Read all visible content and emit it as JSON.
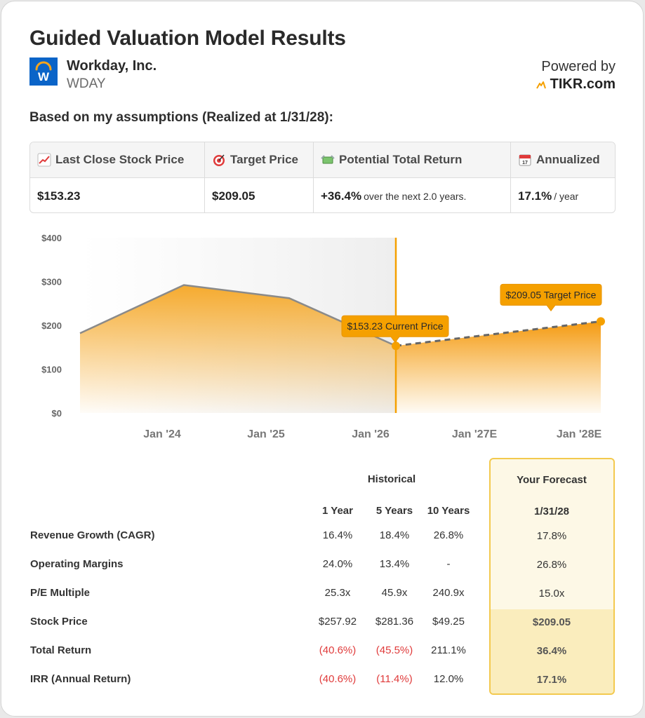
{
  "header": {
    "title": "Guided Valuation Model Results",
    "company_name": "Workday, Inc.",
    "ticker": "WDAY",
    "logo_letter": "W",
    "powered_by": "Powered by",
    "brand": "TIKR.com"
  },
  "assumptions_label": "Based on my assumptions (Realized at 1/31/28):",
  "summary": {
    "last_close_label": "Last Close Stock Price",
    "last_close_value": "$153.23",
    "target_label": "Target Price",
    "target_value": "$209.05",
    "return_label": "Potential Total Return",
    "return_value": "+36.4%",
    "return_note": "over the next 2.0 years.",
    "annualized_label": "Annualized",
    "annualized_value": "17.1%",
    "annualized_note": "/ year"
  },
  "chart_data": {
    "type": "area",
    "y_ticks": [
      "$400",
      "$300",
      "$200",
      "$100",
      "$0"
    ],
    "ylim": [
      0,
      400
    ],
    "x_tick_labels": [
      "Jan '24",
      "Jan '25",
      "Jan '26",
      "Jan '27E",
      "Jan '28E"
    ],
    "historical": {
      "x": [
        "Feb '23",
        "Jan '24",
        "Jan '25",
        "Jan '26"
      ],
      "values": [
        182,
        292,
        262,
        153.23
      ]
    },
    "forecast": {
      "x": [
        "Jan '26",
        "Jan '28E"
      ],
      "values": [
        153.23,
        209.05
      ]
    },
    "annotations": {
      "current": "$153.23 Current Price",
      "target": "$209.05 Target Price"
    },
    "colors": {
      "area": "#f5a623",
      "line": "#8a8a8a",
      "marker": "#f5a000",
      "shade": "#f2f2f2"
    }
  },
  "table": {
    "historical_label": "Historical",
    "forecast_label": "Your Forecast",
    "columns": [
      "1 Year",
      "5 Years",
      "10 Years"
    ],
    "forecast_date": "1/31/28",
    "rows": [
      {
        "label": "Revenue Growth (CAGR)",
        "values": [
          "16.4%",
          "18.4%",
          "26.8%"
        ],
        "forecast": "17.8%"
      },
      {
        "label": "Operating Margins",
        "values": [
          "24.0%",
          "13.4%",
          "-"
        ],
        "forecast": "26.8%"
      },
      {
        "label": "P/E Multiple",
        "values": [
          "25.3x",
          "45.9x",
          "240.9x"
        ],
        "forecast": "15.0x"
      },
      {
        "label": "Stock Price",
        "values": [
          "$257.92",
          "$281.36",
          "$49.25"
        ],
        "forecast": "$209.05"
      },
      {
        "label": "Total Return",
        "values": [
          "(40.6%)",
          "(45.5%)",
          "211.1%"
        ],
        "forecast": "36.4%"
      },
      {
        "label": "IRR (Annual Return)",
        "values": [
          "(40.6%)",
          "(11.4%)",
          "12.0%"
        ],
        "forecast": "17.1%"
      }
    ]
  }
}
